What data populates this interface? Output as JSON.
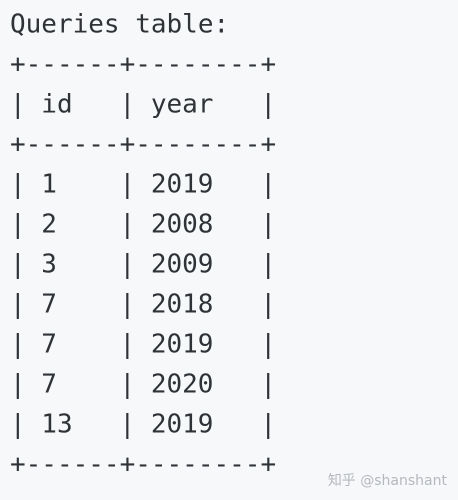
{
  "title": "Queries table:",
  "table": {
    "border": "+------+--------+",
    "separator": "|",
    "columns": [
      "id",
      "year"
    ],
    "rows": [
      [
        "1",
        "2019"
      ],
      [
        "2",
        "2008"
      ],
      [
        "3",
        "2009"
      ],
      [
        "7",
        "2018"
      ],
      [
        "7",
        "2019"
      ],
      [
        "7",
        "2020"
      ],
      [
        "13",
        "2019"
      ]
    ]
  },
  "watermark": "知乎 @shanshant"
}
